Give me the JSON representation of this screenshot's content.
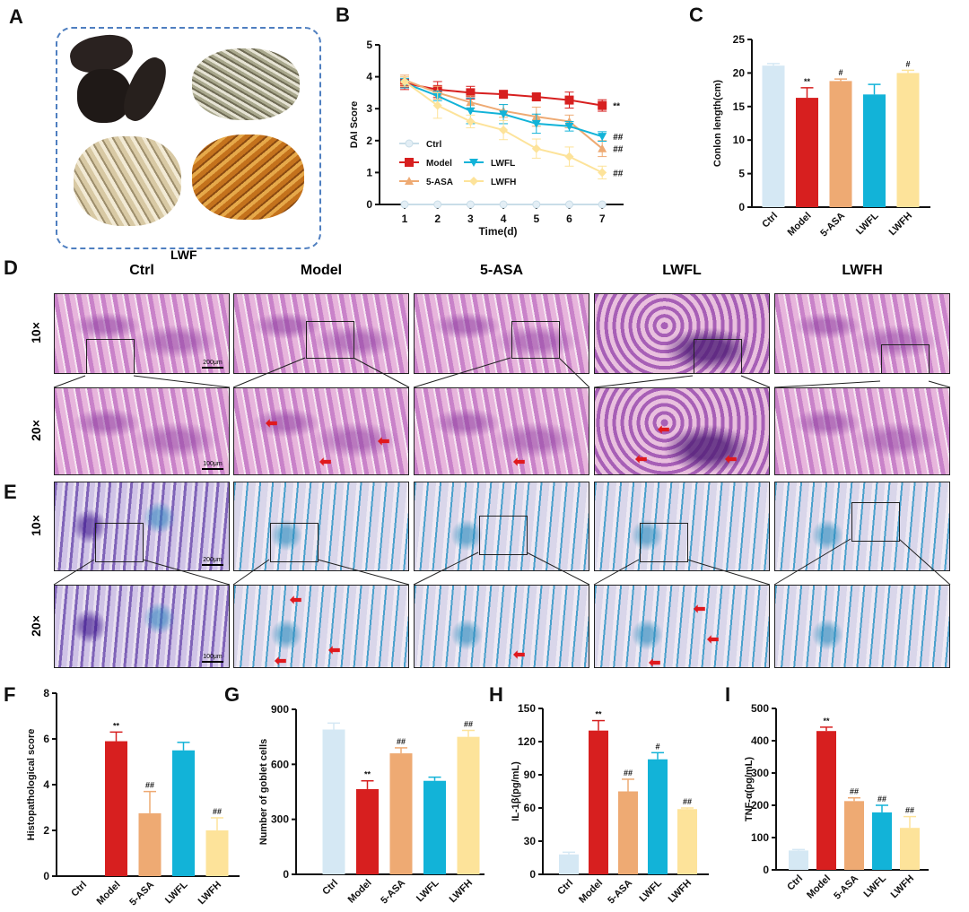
{
  "panel_labels": [
    "A",
    "B",
    "C",
    "D",
    "E",
    "F",
    "G",
    "H",
    "I"
  ],
  "panel_a": {
    "caption": "LWF"
  },
  "groups": [
    "Ctrl",
    "Model",
    "5-ASA",
    "LWFL",
    "LWFH"
  ],
  "group_colors": {
    "Ctrl": "#d5e8f4",
    "Model": "#d71f1f",
    "5-ASA": "#eeaa73",
    "LWFL": "#12b3d8",
    "LWFH": "#fde39a"
  },
  "histology": {
    "row_labels": [
      "10×",
      "20×"
    ],
    "scale_10x": "200μm",
    "scale_20x": "100μm"
  },
  "chart_data": [
    {
      "id": "B",
      "type": "line",
      "title": "",
      "xlabel": "Time(d)",
      "ylabel": "DAI Score",
      "x": [
        1,
        2,
        3,
        4,
        5,
        6,
        7
      ],
      "ylim": [
        0,
        5
      ],
      "yticks": [
        0,
        1,
        2,
        3,
        4,
        5
      ],
      "legend_position": "lower-left",
      "series": [
        {
          "name": "Ctrl",
          "values": [
            0,
            0,
            0,
            0,
            0,
            0,
            0
          ],
          "errors": [
            0,
            0,
            0,
            0,
            0,
            0,
            0
          ],
          "marker": "circle",
          "annotation": ""
        },
        {
          "name": "Model",
          "values": [
            3.8,
            3.6,
            3.5,
            3.45,
            3.37,
            3.27,
            3.1
          ],
          "errors": [
            0.2,
            0.25,
            0.2,
            0.1,
            0.1,
            0.25,
            0.18
          ],
          "marker": "square",
          "annotation": "**"
        },
        {
          "name": "5-ASA",
          "values": [
            3.9,
            3.5,
            3.2,
            2.93,
            2.75,
            2.6,
            1.75
          ],
          "errors": [
            0.15,
            0.2,
            0.2,
            0.2,
            0.3,
            0.2,
            0.25
          ],
          "marker": "triangle-up",
          "annotation": "##"
        },
        {
          "name": "LWFL",
          "values": [
            3.8,
            3.4,
            2.93,
            2.83,
            2.53,
            2.45,
            2.13
          ],
          "errors": [
            0.15,
            0.15,
            0.4,
            0.3,
            0.3,
            0.15,
            0.15
          ],
          "marker": "triangle-down",
          "annotation": "##"
        },
        {
          "name": "LWFH",
          "values": [
            3.85,
            3.1,
            2.6,
            2.33,
            1.75,
            1.5,
            1.0
          ],
          "errors": [
            0.15,
            0.4,
            0.2,
            0.3,
            0.3,
            0.3,
            0.2
          ],
          "marker": "diamond",
          "annotation": "##"
        }
      ]
    },
    {
      "id": "C",
      "type": "bar",
      "ylabel": "Conlon length(cm)",
      "categories": [
        "Ctrl",
        "Model",
        "5-ASA",
        "LWFL",
        "LWFH"
      ],
      "values": [
        21.1,
        16.3,
        18.8,
        16.8,
        20.0
      ],
      "errors": [
        0.3,
        1.5,
        0.3,
        1.5,
        0.4
      ],
      "annotations": [
        "",
        "**",
        "#",
        "",
        "#"
      ],
      "ylim": [
        0,
        25
      ],
      "yticks": [
        0,
        5,
        10,
        15,
        20,
        25
      ]
    },
    {
      "id": "F",
      "type": "bar",
      "ylabel": "Histopathological score",
      "categories": [
        "Ctrl",
        "Model",
        "5-ASA",
        "LWFL",
        "LWFH"
      ],
      "values": [
        0,
        5.9,
        2.75,
        5.5,
        2.0
      ],
      "errors": [
        0,
        0.4,
        0.95,
        0.35,
        0.55
      ],
      "annotations": [
        "",
        "**",
        "##",
        "",
        "##"
      ],
      "ylim": [
        0,
        8
      ],
      "yticks": [
        0,
        2,
        4,
        6,
        8
      ]
    },
    {
      "id": "G",
      "type": "bar",
      "ylabel": "Number of goblet cells",
      "categories": [
        "Ctrl",
        "Model",
        "5-ASA",
        "LWFL",
        "LWFH"
      ],
      "values": [
        790,
        465,
        660,
        510,
        750
      ],
      "errors": [
        35,
        45,
        30,
        20,
        35
      ],
      "annotations": [
        "",
        "**",
        "##",
        "",
        "##"
      ],
      "ylim": [
        0,
        900
      ],
      "yticks": [
        0,
        300,
        600,
        900
      ]
    },
    {
      "id": "H",
      "type": "bar",
      "ylabel": "IL-1β(pg/mL)",
      "categories": [
        "Ctrl",
        "Model",
        "5-ASA",
        "LWFL",
        "LWFH"
      ],
      "values": [
        18,
        130,
        75,
        104,
        59
      ],
      "errors": [
        2,
        9,
        11,
        6,
        1
      ],
      "annotations": [
        "",
        "**",
        "##",
        "#",
        "##"
      ],
      "ylim": [
        0,
        150
      ],
      "yticks": [
        0,
        30,
        60,
        90,
        120,
        150
      ]
    },
    {
      "id": "I",
      "type": "bar",
      "ylabel": "TNF-α(pg/mL)",
      "categories": [
        "Ctrl",
        "Model",
        "5-ASA",
        "LWFL",
        "LWFH"
      ],
      "values": [
        60,
        430,
        213,
        178,
        130
      ],
      "errors": [
        3,
        12,
        10,
        22,
        35
      ],
      "annotations": [
        "",
        "**",
        "##",
        "##",
        "##"
      ],
      "ylim": [
        0,
        500
      ],
      "yticks": [
        0,
        100,
        200,
        300,
        400,
        500
      ]
    }
  ]
}
